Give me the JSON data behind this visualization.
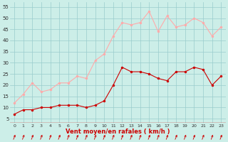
{
  "hours": [
    0,
    1,
    2,
    3,
    4,
    5,
    6,
    7,
    8,
    9,
    10,
    11,
    12,
    13,
    14,
    15,
    16,
    17,
    18,
    19,
    20,
    21,
    22,
    23
  ],
  "wind_avg": [
    7,
    9,
    9,
    10,
    10,
    11,
    11,
    11,
    10,
    11,
    13,
    20,
    28,
    26,
    26,
    25,
    23,
    22,
    26,
    26,
    28,
    27,
    20,
    24
  ],
  "wind_gust": [
    12,
    16,
    21,
    17,
    18,
    21,
    21,
    24,
    23,
    31,
    34,
    42,
    48,
    47,
    48,
    53,
    44,
    51,
    46,
    47,
    50,
    48,
    42,
    46
  ],
  "line_avg_color": "#cc0000",
  "line_gust_color": "#ffaaaa",
  "bg_color": "#cceee8",
  "grid_color": "#99cccc",
  "axis_label_color": "#cc0000",
  "xlabel": "Vent moyen/en rafales ( km/h )",
  "yticks": [
    5,
    10,
    15,
    20,
    25,
    30,
    35,
    40,
    45,
    50,
    55
  ],
  "ylim": [
    3,
    57
  ],
  "xlim": [
    -0.5,
    23.5
  ],
  "tick_color": "#333333",
  "arrow_color": "#cc0000",
  "red_line_color": "#cc0000"
}
